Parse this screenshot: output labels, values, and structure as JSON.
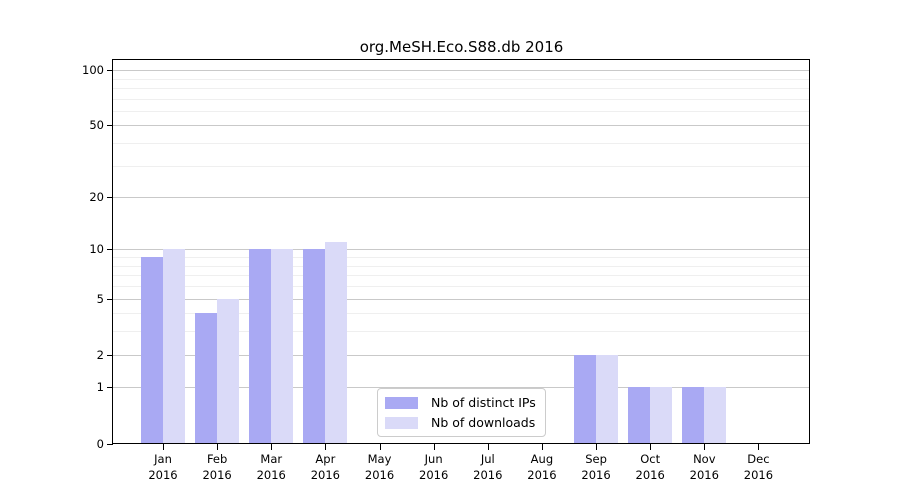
{
  "title": "org.MeSH.Eco.S88.db 2016",
  "chart_data": {
    "type": "bar",
    "title": "org.MeSH.Eco.S88.db 2016",
    "categories": [
      "Jan",
      "Feb",
      "Mar",
      "Apr",
      "May",
      "Jun",
      "Jul",
      "Aug",
      "Sep",
      "Oct",
      "Nov",
      "Dec"
    ],
    "category_year_label": "2016",
    "series": [
      {
        "name": "Nb of distinct IPs",
        "color": "#a9a9f3",
        "values": [
          9,
          4,
          10,
          10,
          0,
          0,
          0,
          0,
          2,
          1,
          1,
          0
        ]
      },
      {
        "name": "Nb of downloads",
        "color": "#dadaf8",
        "values": [
          10,
          5,
          10,
          11,
          0,
          0,
          0,
          0,
          2,
          1,
          1,
          0
        ]
      }
    ],
    "yscale": "log10(1+y)",
    "ylim": [
      0,
      113
    ],
    "yticks": [
      0,
      1,
      2,
      5,
      10,
      20,
      50,
      100
    ],
    "minor_gridlines": [
      3,
      4,
      6,
      7,
      8,
      9,
      30,
      40,
      60,
      70,
      80,
      90
    ],
    "xlabel": "",
    "ylabel": "",
    "grid": "horizontal",
    "legend_position": "lower-center",
    "colors": {
      "distinct_ips_bar": "#a9a9f3",
      "downloads_bar": "#dadaf8",
      "major_gridline": "#c9c9c9",
      "minor_gridline": "#efefef",
      "axis": "#000000",
      "background": "#ffffff",
      "legend_border": "#cccccc"
    }
  }
}
